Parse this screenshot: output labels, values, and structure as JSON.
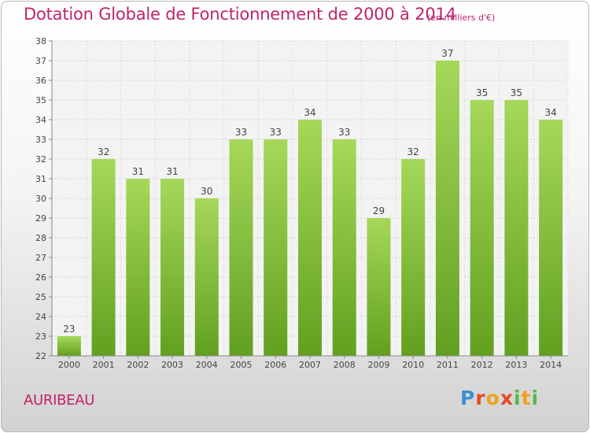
{
  "header": {
    "title": "Dotation Globale de Fonctionnement de 2000 à 2014",
    "subtitle": "(en milliers d'€)"
  },
  "footer": {
    "place": "AURIBEAU",
    "brand": "Proxiti"
  },
  "colors": {
    "title": "#c0246a",
    "bar_top": "#a6d85a",
    "bar_bottom": "#62a020",
    "brand_letters": [
      "#3a8fd0",
      "#e24b24",
      "#f0a21a",
      "#57b847"
    ]
  },
  "chart_data": {
    "type": "bar",
    "title": "Dotation Globale de Fonctionnement de 2000 à 2014",
    "subtitle": "(en milliers d'€)",
    "categories": [
      "2000",
      "2001",
      "2002",
      "2003",
      "2004",
      "2005",
      "2006",
      "2007",
      "2008",
      "2009",
      "2010",
      "2011",
      "2012",
      "2013",
      "2014"
    ],
    "values": [
      23,
      32,
      31,
      31,
      30,
      33,
      33,
      34,
      33,
      29,
      32,
      37,
      35,
      35,
      34
    ],
    "ylim": [
      22,
      38
    ],
    "yticks": [
      22,
      23,
      24,
      25,
      26,
      27,
      28,
      29,
      30,
      31,
      32,
      33,
      34,
      35,
      36,
      37,
      38
    ],
    "grid": true,
    "legend": false,
    "data_labels": true
  }
}
